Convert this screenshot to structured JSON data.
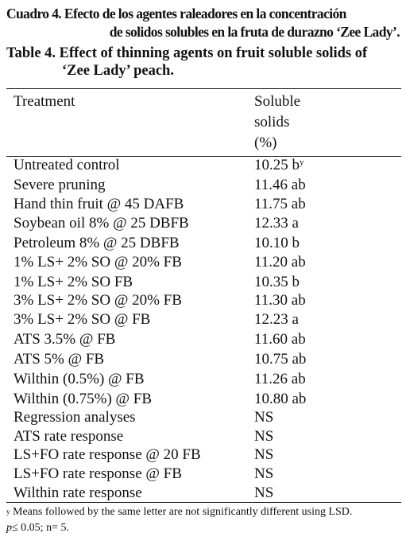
{
  "caption": {
    "es_line1": "Cuadro 4. Efecto de los agentes raleadores en la concentración",
    "es_line2": "de solidos solubles en la fruta de durazno ‘Zee Lady’.",
    "en_line1": "Table 4. Effect of thinning agents on fruit soluble solids of",
    "en_line2": "‘Zee Lady’ peach."
  },
  "header": {
    "treatment": "Treatment",
    "solids_line1": "Soluble",
    "solids_line2": "solids",
    "solids_line3": "(%)"
  },
  "rows": [
    {
      "treatment": "Untreated control",
      "value": "10.25 b",
      "mark": "y"
    },
    {
      "treatment": "Severe pruning",
      "value": "11.46 ab",
      "mark": ""
    },
    {
      "treatment": "Hand thin fruit @ 45 DAFB",
      "value": "11.75 ab",
      "mark": ""
    },
    {
      "treatment": "Soybean oil 8% @ 25 DBFB",
      "value": "12.33 a",
      "mark": ""
    },
    {
      "treatment": "Petroleum 8% @ 25 DBFB",
      "value": "10.10 b",
      "mark": ""
    },
    {
      "treatment": "1% LS+ 2% SO @ 20% FB",
      "value": "11.20 ab",
      "mark": ""
    },
    {
      "treatment": "1% LS+ 2% SO FB",
      "value": "10.35 b",
      "mark": ""
    },
    {
      "treatment": "3% LS+ 2% SO @ 20% FB",
      "value": "11.30 ab",
      "mark": ""
    },
    {
      "treatment": "3% LS+ 2% SO @ FB",
      "value": "12.23 a",
      "mark": ""
    },
    {
      "treatment": "ATS 3.5% @ FB",
      "value": "11.60 ab",
      "mark": ""
    },
    {
      "treatment": "ATS 5% @ FB",
      "value": "10.75 ab",
      "mark": ""
    },
    {
      "treatment": "Wilthin (0.5%) @ FB",
      "value": "11.26 ab",
      "mark": ""
    },
    {
      "treatment": "Wilthin (0.75%) @ FB",
      "value": "10.80 ab",
      "mark": ""
    },
    {
      "treatment": "Regression analyses",
      "value": "NS",
      "mark": ""
    },
    {
      "treatment": "ATS rate response",
      "value": "NS",
      "mark": ""
    },
    {
      "treatment": "LS+FO rate response @ 20 FB",
      "value": "NS",
      "mark": ""
    },
    {
      "treatment": "LS+FO rate response @ FB",
      "value": "NS",
      "mark": ""
    },
    {
      "treatment": "Wilthin rate response",
      "value": "NS",
      "mark": ""
    }
  ],
  "footnote": {
    "mark": "y",
    "line1": "Means followed by the same letter are not significantly different using LSD.",
    "p_symbol": "p",
    "line2_rest": "≤ 0.05; n= 5."
  }
}
